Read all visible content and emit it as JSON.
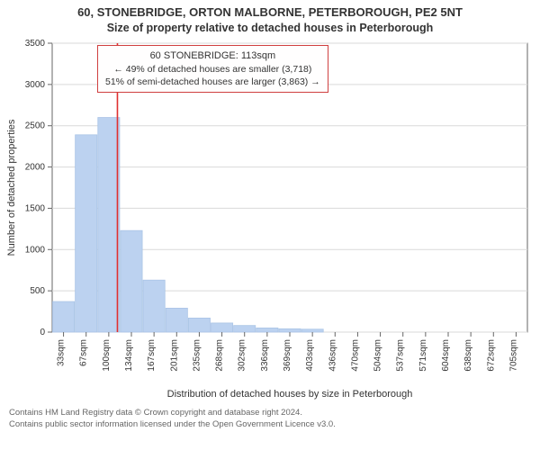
{
  "titles": {
    "line1": "60, STONEBRIDGE, ORTON MALBORNE, PETERBOROUGH, PE2 5NT",
    "line2": "Size of property relative to detached houses in Peterborough"
  },
  "chart": {
    "type": "histogram",
    "ylabel": "Number of detached properties",
    "xlabel": "Distribution of detached houses by size in Peterborough",
    "ylim": [
      0,
      3500
    ],
    "ytick_step": 500,
    "yticks": [
      0,
      500,
      1000,
      1500,
      2000,
      2500,
      3000,
      3500
    ],
    "bar_color": "#bcd2f0",
    "bar_edge": "#aac4e6",
    "grid_color": "#d9d9d9",
    "axis_color": "#666666",
    "marker_line_color": "#e03030",
    "marker_x_value": 113,
    "bins": [
      {
        "label": "33sqm",
        "value": 370
      },
      {
        "label": "67sqm",
        "value": 2390
      },
      {
        "label": "100sqm",
        "value": 2600
      },
      {
        "label": "134sqm",
        "value": 1230
      },
      {
        "label": "167sqm",
        "value": 630
      },
      {
        "label": "201sqm",
        "value": 290
      },
      {
        "label": "235sqm",
        "value": 170
      },
      {
        "label": "268sqm",
        "value": 110
      },
      {
        "label": "302sqm",
        "value": 80
      },
      {
        "label": "336sqm",
        "value": 50
      },
      {
        "label": "369sqm",
        "value": 40
      },
      {
        "label": "403sqm",
        "value": 35
      },
      {
        "label": "436sqm",
        "value": 0
      },
      {
        "label": "470sqm",
        "value": 0
      },
      {
        "label": "504sqm",
        "value": 0
      },
      {
        "label": "537sqm",
        "value": 0
      },
      {
        "label": "571sqm",
        "value": 0
      },
      {
        "label": "604sqm",
        "value": 0
      },
      {
        "label": "638sqm",
        "value": 0
      },
      {
        "label": "672sqm",
        "value": 0
      },
      {
        "label": "705sqm",
        "value": 0
      }
    ],
    "annotation": {
      "title": "60 STONEBRIDGE: 113sqm",
      "line_smaller": "← 49% of detached houses are smaller (3,718)",
      "line_larger": "51% of semi-detached houses are larger (3,863) →"
    }
  },
  "footer": {
    "line1": "Contains HM Land Registry data © Crown copyright and database right 2024.",
    "line2": "Contains public sector information licensed under the Open Government Licence v3.0."
  }
}
